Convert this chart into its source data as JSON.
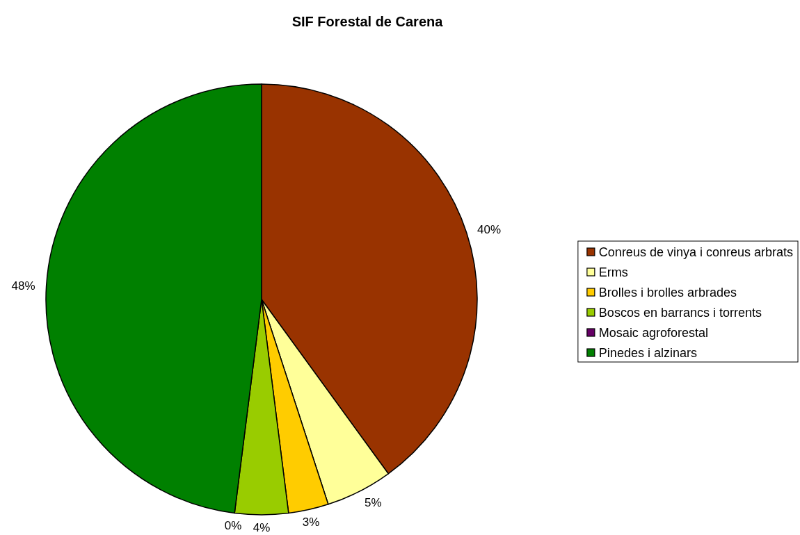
{
  "chart_data": {
    "type": "pie",
    "title": "SIF Forestal de Carena",
    "categories": [
      "Conreus de vinya i conreus arbrats",
      "Erms",
      "Brolles i brolles arbrades",
      "Boscos en barrancs i torrents",
      "Mosaic agroforestal",
      "Pinedes i alzinars"
    ],
    "values": [
      40,
      5,
      3,
      4,
      0,
      48
    ],
    "value_labels": [
      "40%",
      "5%",
      "3%",
      "4%",
      "0%",
      "48%"
    ],
    "colors": [
      "#993300",
      "#ffff99",
      "#ffcc00",
      "#99cc00",
      "#660066",
      "#008000"
    ],
    "legend": "right"
  }
}
